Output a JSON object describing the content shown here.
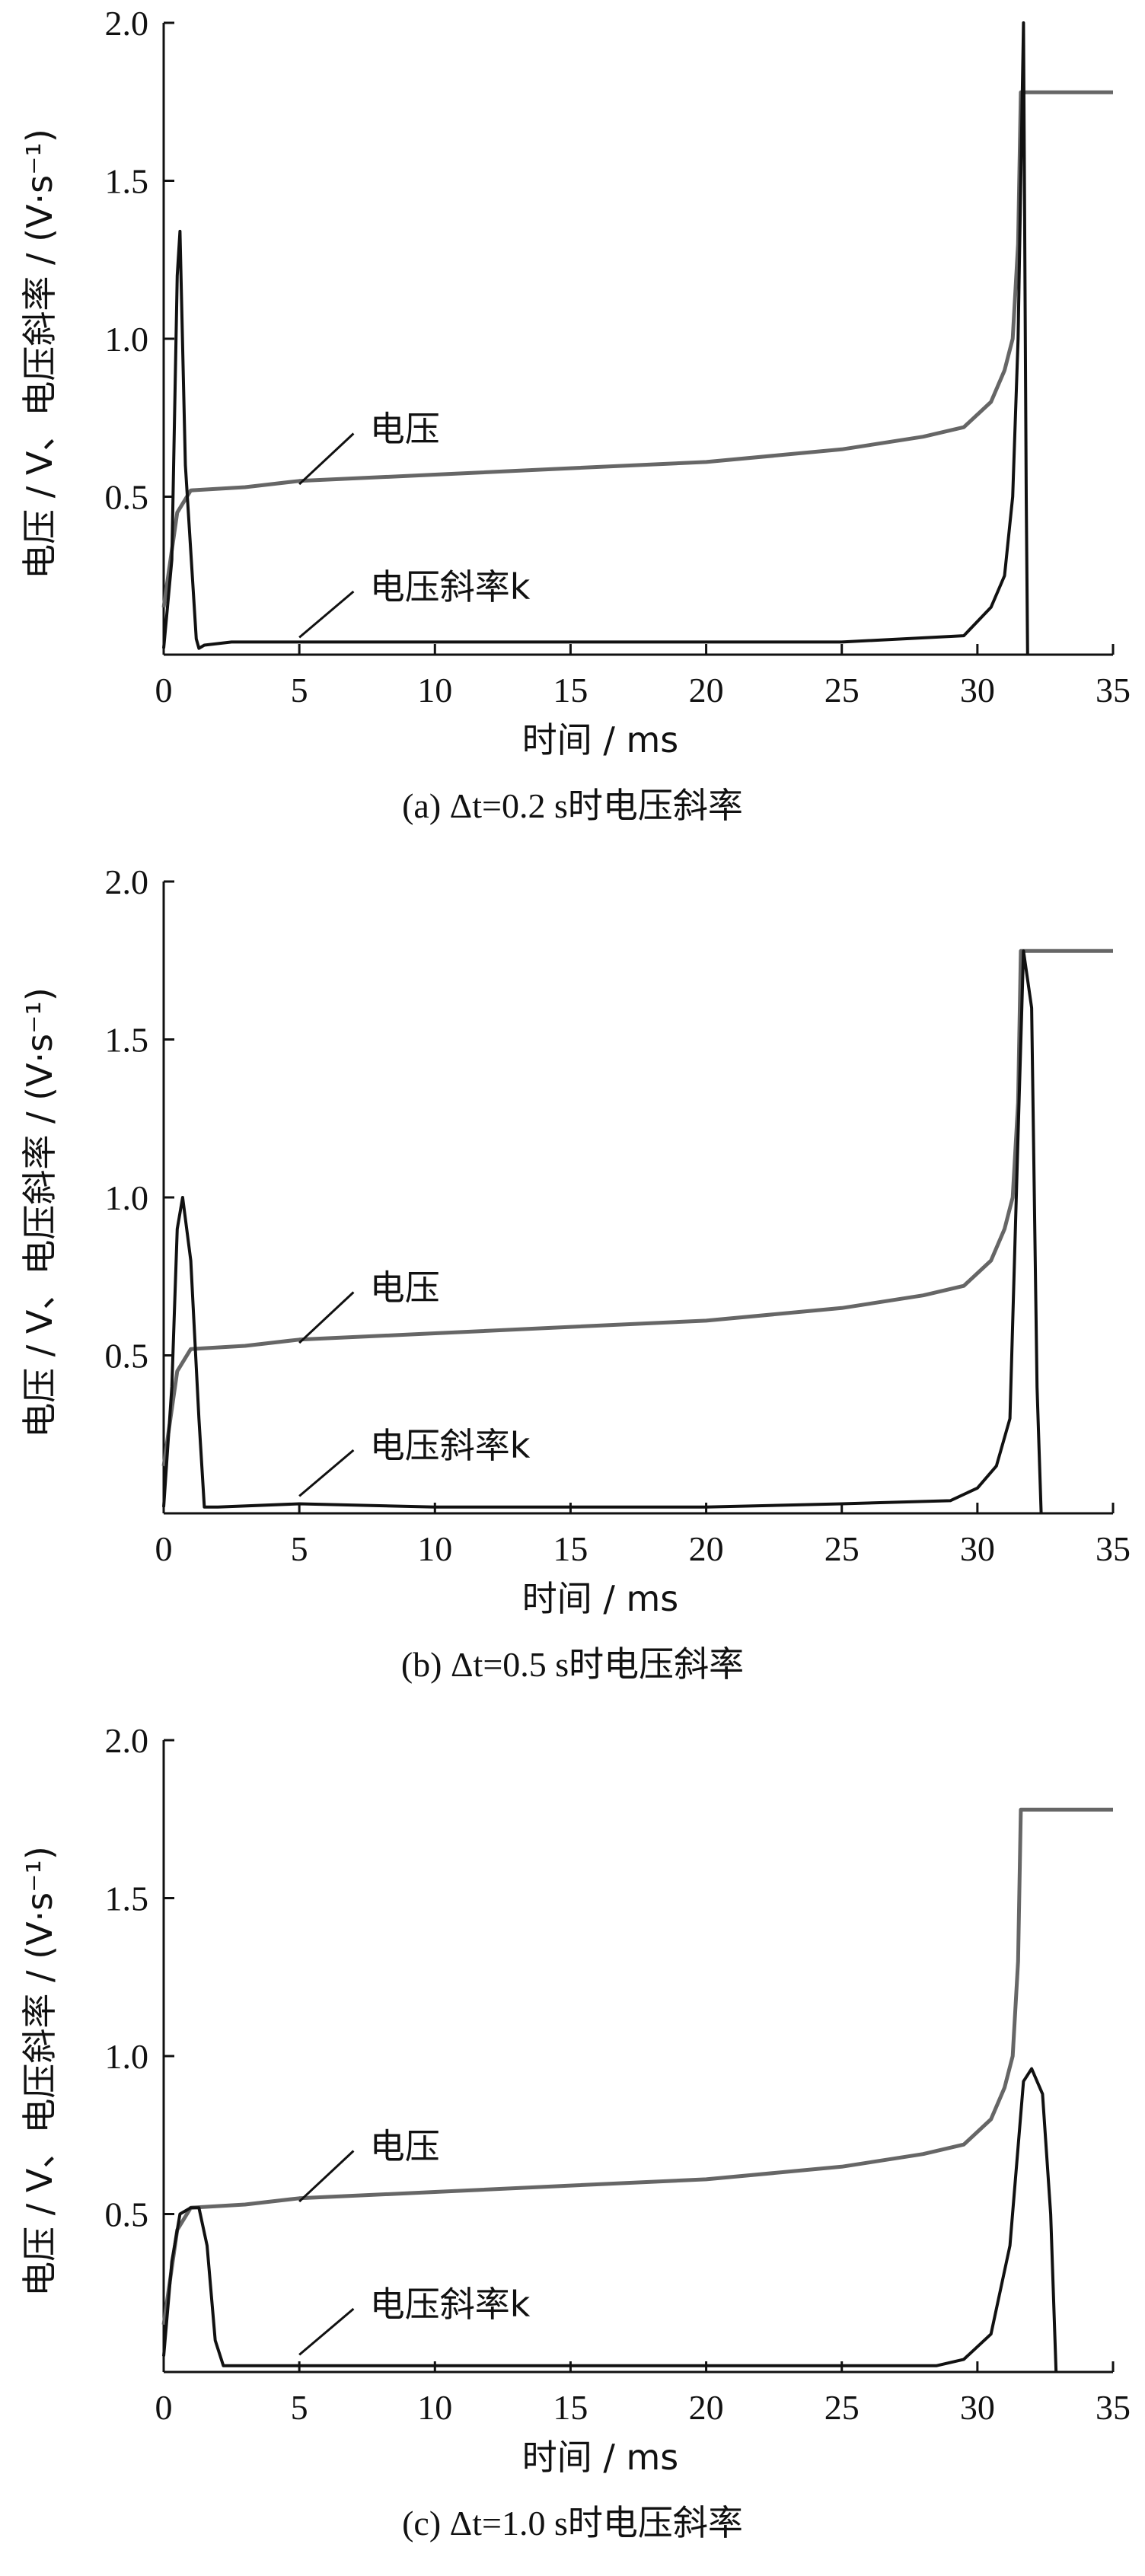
{
  "chart_data": [
    {
      "type": "line",
      "caption": "(a) Δt=0.2 s时电压斜率",
      "xlabel": "时间 / ms",
      "ylabel": "电压 / V、电压斜率 / (V·s⁻¹)",
      "xlim": [
        0,
        35
      ],
      "ylim": [
        0,
        2.0
      ],
      "xticks": [
        "0",
        "5",
        "10",
        "15",
        "20",
        "25",
        "30",
        "35"
      ],
      "yticks": [
        "0.5",
        "1.0",
        "1.5",
        "2.0"
      ],
      "annotations": [
        "电压",
        "电压斜率k"
      ],
      "series": [
        {
          "name": "电压",
          "color": "#666666",
          "x": [
            0,
            0.5,
            1,
            3,
            5,
            10,
            15,
            20,
            25,
            28,
            29.5,
            30.5,
            31.0,
            31.3,
            31.5,
            31.6,
            31.62,
            35
          ],
          "y": [
            0.15,
            0.45,
            0.52,
            0.53,
            0.55,
            0.57,
            0.59,
            0.61,
            0.65,
            0.69,
            0.72,
            0.8,
            0.9,
            1.0,
            1.3,
            1.78,
            1.78,
            1.78
          ]
        },
        {
          "name": "电压斜率k",
          "color": "#111111",
          "x": [
            0,
            0.3,
            0.5,
            0.6,
            0.8,
            1.2,
            1.3,
            1.5,
            2.5,
            5,
            10,
            15,
            20,
            25,
            29.5,
            30.5,
            31.0,
            31.3,
            31.5,
            31.7,
            31.8,
            31.85
          ],
          "y": [
            0.02,
            0.3,
            1.2,
            1.34,
            0.6,
            0.05,
            0.02,
            0.03,
            0.04,
            0.04,
            0.04,
            0.04,
            0.04,
            0.04,
            0.06,
            0.15,
            0.25,
            0.5,
            1.0,
            2.0,
            0.5,
            0.0
          ]
        }
      ]
    },
    {
      "type": "line",
      "caption": "(b) Δt=0.5 s时电压斜率",
      "xlabel": "时间 / ms",
      "ylabel": "电压 / V、电压斜率 / (V·s⁻¹)",
      "xlim": [
        0,
        35
      ],
      "ylim": [
        0,
        2.0
      ],
      "xticks": [
        "0",
        "5",
        "10",
        "15",
        "20",
        "25",
        "30",
        "35"
      ],
      "yticks": [
        "0.5",
        "1.0",
        "1.5",
        "2.0"
      ],
      "annotations": [
        "电压",
        "电压斜率k"
      ],
      "series": [
        {
          "name": "电压",
          "color": "#666666",
          "x": [
            0,
            0.5,
            1,
            3,
            5,
            10,
            15,
            20,
            25,
            28,
            29.5,
            30.5,
            31.0,
            31.3,
            31.5,
            31.6,
            31.62,
            35
          ],
          "y": [
            0.15,
            0.45,
            0.52,
            0.53,
            0.55,
            0.57,
            0.59,
            0.61,
            0.65,
            0.69,
            0.72,
            0.8,
            0.9,
            1.0,
            1.3,
            1.78,
            1.78,
            1.78
          ]
        },
        {
          "name": "电压斜率k",
          "color": "#111111",
          "x": [
            0,
            0.3,
            0.5,
            0.7,
            1.0,
            1.3,
            1.5,
            2.0,
            5,
            10,
            15,
            20,
            25,
            29,
            30,
            30.7,
            31.2,
            31.5,
            31.7,
            32.0,
            32.2,
            32.35
          ],
          "y": [
            0.02,
            0.4,
            0.9,
            1.0,
            0.8,
            0.3,
            0.02,
            0.02,
            0.03,
            0.02,
            0.02,
            0.02,
            0.03,
            0.04,
            0.08,
            0.15,
            0.3,
            1.2,
            1.78,
            1.6,
            0.4,
            0.0
          ]
        }
      ]
    },
    {
      "type": "line",
      "caption": "(c) Δt=1.0 s时电压斜率",
      "xlabel": "时间 / ms",
      "ylabel": "电压 / V、电压斜率 / (V·s⁻¹)",
      "xlim": [
        0,
        35
      ],
      "ylim": [
        0,
        2.0
      ],
      "xticks": [
        "0",
        "5",
        "10",
        "15",
        "20",
        "25",
        "30",
        "35"
      ],
      "yticks": [
        "0.5",
        "1.0",
        "1.5",
        "2.0"
      ],
      "annotations": [
        "电压",
        "电压斜率k"
      ],
      "series": [
        {
          "name": "电压",
          "color": "#666666",
          "x": [
            0,
            0.5,
            1,
            3,
            5,
            10,
            15,
            20,
            25,
            28,
            29.5,
            30.5,
            31.0,
            31.3,
            31.5,
            31.6,
            31.62,
            35
          ],
          "y": [
            0.15,
            0.45,
            0.52,
            0.53,
            0.55,
            0.57,
            0.59,
            0.61,
            0.65,
            0.69,
            0.72,
            0.8,
            0.9,
            1.0,
            1.3,
            1.78,
            1.78,
            1.78
          ]
        },
        {
          "name": "电压斜率k",
          "color": "#111111",
          "x": [
            0,
            0.3,
            0.6,
            1.0,
            1.3,
            1.6,
            1.9,
            2.2,
            5,
            10,
            15,
            20,
            25,
            28.5,
            29.5,
            30.5,
            31.2,
            31.7,
            32.0,
            32.4,
            32.7,
            32.9
          ],
          "y": [
            0.05,
            0.35,
            0.5,
            0.52,
            0.52,
            0.4,
            0.1,
            0.02,
            0.02,
            0.02,
            0.02,
            0.02,
            0.02,
            0.02,
            0.04,
            0.12,
            0.4,
            0.92,
            0.96,
            0.88,
            0.5,
            0.0
          ]
        }
      ]
    }
  ]
}
